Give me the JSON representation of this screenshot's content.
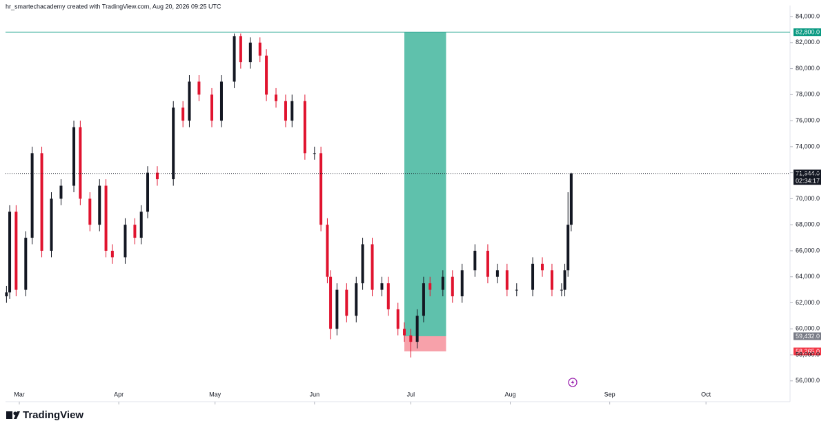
{
  "header": "hr_smartechacademy created with TradingView.com, Aug 20, 2026 09:25 UTC",
  "brand": "TradingView",
  "chart_data": {
    "type": "candlestick",
    "x": [
      56,
      57,
      59,
      62,
      64,
      67,
      70,
      73,
      77,
      79,
      82,
      85,
      87,
      89,
      93,
      96,
      98,
      100,
      103,
      108,
      111,
      113,
      116,
      120,
      123,
      127,
      129,
      132,
      135,
      137,
      140,
      143,
      145,
      149,
      152,
      154,
      156,
      157,
      159,
      162,
      165,
      167,
      170,
      173,
      175,
      178,
      180,
      182,
      184,
      186,
      188,
      192,
      195,
      198,
      202,
      206,
      209,
      212,
      215,
      220,
      223,
      226,
      229,
      230,
      231,
      232
    ],
    "open": [
      62500,
      62800,
      69000,
      63000,
      67000,
      73500,
      66000,
      70000,
      71000,
      75500,
      70000,
      68000,
      71000,
      66000,
      65500,
      68000,
      67000,
      69000,
      72000,
      71500,
      77000,
      76000,
      79000,
      78000,
      76000,
      79000,
      82500,
      80500,
      82000,
      81000,
      78000,
      77500,
      76000,
      77500,
      73500,
      73500,
      68000,
      64000,
      60000,
      63000,
      61000,
      63500,
      66500,
      63000,
      63500,
      61500,
      60000,
      59500,
      59000,
      61000,
      63500,
      63000,
      64000,
      62500,
      64500,
      66000,
      64000,
      64500,
      63000,
      63000,
      65000,
      64500,
      63000,
      63000,
      64500,
      68000
    ],
    "high": [
      63300,
      69500,
      69500,
      67500,
      74000,
      74000,
      70500,
      71500,
      76000,
      76000,
      70500,
      71500,
      71500,
      66500,
      68500,
      68500,
      69500,
      72500,
      72500,
      77500,
      77500,
      79500,
      79500,
      78500,
      79500,
      82700,
      82700,
      82400,
      82400,
      81500,
      78500,
      78000,
      78000,
      78000,
      74000,
      74000,
      68500,
      64500,
      63500,
      63500,
      64000,
      67000,
      67000,
      64000,
      64000,
      62000,
      60500,
      60000,
      61500,
      64000,
      64000,
      64500,
      64500,
      65000,
      66500,
      66500,
      65000,
      65000,
      63500,
      65500,
      65500,
      65000,
      63500,
      65000,
      70500,
      72000
    ],
    "low": [
      62000,
      62300,
      62500,
      62500,
      66500,
      65500,
      65500,
      69500,
      70500,
      69500,
      67500,
      67500,
      65500,
      65000,
      65000,
      66500,
      66500,
      68500,
      71000,
      71000,
      75500,
      75500,
      77500,
      75500,
      75500,
      78500,
      80000,
      80000,
      80500,
      77500,
      77000,
      75500,
      75500,
      73000,
      73000,
      67500,
      63500,
      59200,
      59500,
      60500,
      60500,
      63000,
      62500,
      62500,
      61000,
      59500,
      59000,
      57800,
      58500,
      60500,
      62500,
      62500,
      62000,
      62000,
      64000,
      63500,
      63500,
      62500,
      62500,
      62500,
      64000,
      62500,
      62500,
      62500,
      64000,
      67500
    ],
    "close": [
      62800,
      69000,
      63000,
      67000,
      73500,
      66000,
      70000,
      71000,
      75500,
      70000,
      68000,
      71000,
      66000,
      65500,
      68000,
      67000,
      69000,
      72000,
      71500,
      77000,
      76000,
      79000,
      78000,
      76000,
      79000,
      82500,
      80500,
      82000,
      81000,
      78000,
      77500,
      76000,
      77500,
      73500,
      73500,
      68000,
      64000,
      60000,
      63000,
      61000,
      63500,
      66500,
      63000,
      63500,
      61500,
      60000,
      59500,
      59000,
      61000,
      63500,
      63000,
      64000,
      62500,
      64500,
      66000,
      64000,
      64500,
      63000,
      63000,
      65000,
      64500,
      63000,
      63000,
      64500,
      68000,
      71944
    ],
    "up_color": "#131722",
    "down_color": "#e0132e",
    "xlim": [
      55.7,
      300.2
    ],
    "xticks": [
      {
        "value": 60,
        "label": "Mar"
      },
      {
        "value": 91,
        "label": "Apr"
      },
      {
        "value": 121,
        "label": "May"
      },
      {
        "value": 152,
        "label": "Jun"
      },
      {
        "value": 182,
        "label": "Jul"
      },
      {
        "value": 213,
        "label": "Aug"
      },
      {
        "value": 244,
        "label": "Sep"
      },
      {
        "value": 274,
        "label": "Oct"
      }
    ],
    "ylim": [
      54400,
      84850
    ],
    "yticks": [
      {
        "value": 56000,
        "label": "56,000.0"
      },
      {
        "value": 58000,
        "label": "58,000.0"
      },
      {
        "value": 60000,
        "label": "60,000.0"
      },
      {
        "value": 62000,
        "label": "62,000.0"
      },
      {
        "value": 64000,
        "label": "64,000.0"
      },
      {
        "value": 66000,
        "label": "66,000.0"
      },
      {
        "value": 68000,
        "label": "68,000.0"
      },
      {
        "value": 70000,
        "label": "70,000.0"
      },
      {
        "value": 72000,
        "label": "72,000.0"
      },
      {
        "value": 74000,
        "label": "74,000.0"
      },
      {
        "value": 76000,
        "label": "76,000.0"
      },
      {
        "value": 78000,
        "label": "78,000.0"
      },
      {
        "value": 80000,
        "label": "80,000.0"
      },
      {
        "value": 82000,
        "label": "82,000.0"
      },
      {
        "value": 84000,
        "label": "84,000.0"
      }
    ],
    "position": {
      "x": [
        180,
        193
      ],
      "target": 82800,
      "entry": 59432,
      "stop": 58265,
      "profit_color": "#5fc1ac",
      "loss_color": "#f7a1aa"
    },
    "levels": [
      {
        "value": 82800,
        "label": "82,800.0",
        "color": "#089981",
        "line": "solid"
      },
      {
        "value": 71944,
        "label": "71,944.0",
        "color": "#131722",
        "line": "dotted",
        "countdown": "02:34:17"
      },
      {
        "value": 59432,
        "label": "59,432.0",
        "color": "#787b86"
      },
      {
        "value": 58265,
        "label": "58,265.0",
        "color": "#f23645"
      }
    ]
  }
}
